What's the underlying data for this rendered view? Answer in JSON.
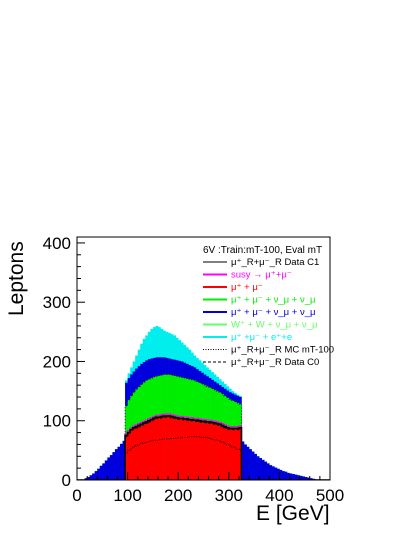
{
  "chart_data": {
    "type": "area",
    "ylabel": "Leptons",
    "xlabel": "E [GeV]",
    "xlim": [
      0,
      500
    ],
    "ylim": [
      0,
      410
    ],
    "xticks": [
      0,
      100,
      200,
      300,
      400,
      500
    ],
    "yticks": [
      0,
      100,
      200,
      300,
      400
    ],
    "legend_position": "top-right",
    "legend_title": "6V :Train:mT-100, Eval mT",
    "bin_width": 5,
    "stacked_components": [
      {
        "label": "μ⁺+μ⁻",
        "color": "#ff0000",
        "top": [
          0,
          0,
          0,
          0,
          0,
          0,
          0,
          0,
          0,
          0,
          0,
          0,
          0,
          0,
          0,
          0,
          0,
          0,
          0,
          75,
          80,
          85,
          88,
          90,
          92,
          94,
          96,
          98,
          100,
          102,
          104,
          106,
          106,
          107,
          108,
          108,
          108,
          107,
          106,
          105,
          104,
          104,
          103,
          103,
          102,
          102,
          101,
          101,
          100,
          99,
          99,
          98,
          98,
          97,
          96,
          95,
          94,
          92,
          90,
          88,
          87,
          87,
          87,
          87,
          88,
          0,
          0,
          0,
          0,
          0,
          0,
          0,
          0,
          0,
          0,
          0,
          0,
          0,
          0,
          0,
          0,
          0,
          0,
          0,
          0,
          0,
          0,
          0,
          0,
          0,
          0,
          0,
          0,
          0,
          0,
          0,
          0,
          0,
          0,
          0
        ]
      },
      {
        "label": "μ⁺ + μ⁻ + ν_μ + ν_μ",
        "color": "#00ee00",
        "top": [
          0,
          0,
          0,
          0,
          0,
          0,
          0,
          0,
          0,
          0,
          0,
          0,
          0,
          0,
          0,
          0,
          0,
          0,
          0,
          125,
          135,
          142,
          148,
          153,
          157,
          161,
          165,
          168,
          170,
          172,
          174,
          175,
          176,
          177,
          178,
          178,
          178,
          177,
          176,
          175,
          174,
          173,
          172,
          171,
          170,
          169,
          168,
          166,
          164,
          162,
          160,
          158,
          156,
          154,
          152,
          150,
          148,
          145,
          142,
          139,
          136,
          134,
          132,
          130,
          128,
          0,
          0,
          0,
          0,
          0,
          0,
          0,
          0,
          0,
          0,
          0,
          0,
          0,
          0,
          0,
          0,
          0,
          0,
          0,
          0,
          0,
          0,
          0,
          0,
          0,
          0,
          0,
          0,
          0,
          0,
          0,
          0,
          0,
          0,
          0
        ]
      },
      {
        "label": "μ⁺ + μ⁻ + ν_μ + ν_μ",
        "color": "#0000dd",
        "top": [
          0,
          0,
          0,
          3,
          5,
          8,
          11,
          15,
          19,
          24,
          28,
          33,
          38,
          42,
          47,
          52,
          56,
          61,
          66,
          164,
          172,
          178,
          183,
          188,
          192,
          196,
          199,
          202,
          204,
          205,
          206,
          207,
          207,
          207,
          207,
          206,
          205,
          204,
          203,
          202,
          201,
          200,
          198,
          196,
          194,
          192,
          190,
          187,
          184,
          181,
          178,
          175,
          172,
          169,
          166,
          163,
          160,
          157,
          154,
          151,
          148,
          146,
          144,
          142,
          140,
          65,
          60,
          56,
          52,
          48,
          44,
          40,
          37,
          34,
          31,
          28,
          25,
          23,
          21,
          19,
          17,
          15,
          14,
          12,
          11,
          10,
          9,
          8,
          7,
          6,
          5,
          4,
          3,
          2,
          1,
          0,
          0,
          0,
          0,
          0
        ]
      },
      {
        "label": "μ⁺ +μ⁻ + e⁺+e",
        "color": "#00eeee",
        "top": [
          0,
          0,
          0,
          3,
          5,
          8,
          11,
          15,
          19,
          24,
          28,
          33,
          38,
          42,
          47,
          52,
          56,
          61,
          66,
          168,
          180,
          190,
          200,
          210,
          220,
          230,
          238,
          244,
          250,
          255,
          258,
          260,
          258,
          255,
          252,
          250,
          248,
          246,
          244,
          240,
          236,
          232,
          228,
          224,
          220,
          215,
          210,
          206,
          202,
          198,
          194,
          190,
          186,
          182,
          178,
          174,
          170,
          166,
          162,
          158,
          154,
          150,
          147,
          144,
          142,
          65,
          60,
          56,
          52,
          48,
          44,
          40,
          37,
          34,
          31,
          28,
          25,
          23,
          21,
          19,
          17,
          15,
          14,
          12,
          11,
          10,
          9,
          8,
          7,
          6,
          5,
          4,
          3,
          2,
          1,
          0,
          0,
          0,
          0,
          0
        ]
      }
    ],
    "overlay_lines": [
      {
        "label": "μ⁺_R+μ⁻_R Data C1",
        "color": "#000000",
        "style": "solid"
      },
      {
        "label": "μ⁺_R+μ⁻_R MC mT-100",
        "color": "#000000",
        "style": "dotted",
        "values": [
          0,
          0,
          0,
          0,
          0,
          0,
          0,
          0,
          0,
          0,
          0,
          0,
          0,
          0,
          0,
          0,
          0,
          0,
          0,
          45,
          50,
          53,
          56,
          58,
          60,
          62,
          63,
          64,
          65,
          66,
          67,
          67,
          68,
          68,
          69,
          69,
          69,
          70,
          70,
          71,
          71,
          72,
          72,
          72,
          73,
          73,
          73,
          73,
          73,
          72,
          72,
          71,
          70,
          69,
          68,
          67,
          66,
          64,
          62,
          60,
          58,
          56,
          54,
          52,
          50,
          0,
          0,
          0,
          0,
          0,
          0,
          0,
          0,
          0,
          0,
          0,
          0,
          0,
          0,
          0,
          0,
          0,
          0,
          0,
          0,
          0,
          0,
          0,
          0,
          0,
          0,
          0,
          0,
          0,
          0,
          0,
          0,
          0,
          0,
          0
        ]
      },
      {
        "label": "μ⁺_R+μ⁻_R Data C0",
        "color": "#000000",
        "style": "dashed"
      }
    ],
    "legend_entries": [
      {
        "label": "μ⁺_R+μ⁻_R Data C1",
        "color": "#000000"
      },
      {
        "label": "susy → μ⁺+μ⁻",
        "color": "#ff00ff"
      },
      {
        "label": "μ⁺ + μ⁻",
        "color": "#ff0000"
      },
      {
        "label": "μ⁺ + μ⁻ + ν_μ + ν_μ",
        "color": "#00ee00"
      },
      {
        "label": "μ⁺ + μ⁻ + ν_μ + ν_μ",
        "color": "#0000dd"
      },
      {
        "label": "W⁺ + W + ν_μ + ν_μ",
        "color": "#66ff66"
      },
      {
        "label": "μ⁺ +μ⁻ + e⁺+e",
        "color": "#00eeee"
      },
      {
        "label": "μ⁺_R+μ⁻_R MC mT-100",
        "color": "#000000"
      },
      {
        "label": "μ⁺_R+μ⁻_R Data C0",
        "color": "#000000"
      }
    ]
  }
}
